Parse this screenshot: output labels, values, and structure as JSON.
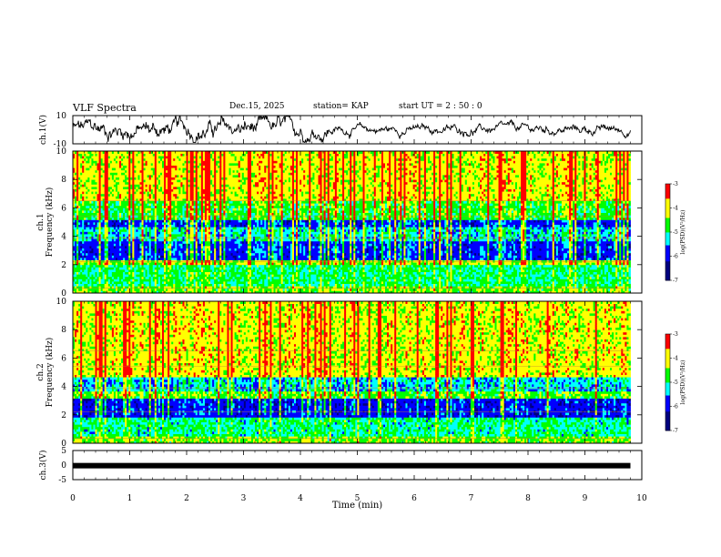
{
  "header": {
    "title": "VLF Spectra",
    "date": "Dec.15, 2025",
    "station": "station= KAP",
    "start_ut": "start  UT  =   2  : 50 : 0"
  },
  "chart_data": [
    {
      "type": "line",
      "panel": "ch.1 waveform",
      "ylabel": "ch.1(V)",
      "ylim": [
        -10,
        10
      ],
      "yticks": [
        "10",
        "-10"
      ],
      "x_range_min": [
        0,
        9.8
      ],
      "description_values": "noisy amplitude trace, mostly between -6 and +8 V"
    },
    {
      "type": "heatmap",
      "panel": "ch.1 spectrogram",
      "ylabel_top": "ch.1",
      "ylabel": "Frequency (kHz)",
      "ylim": [
        0,
        10
      ],
      "yticks": [
        "0",
        "2",
        "4",
        "6",
        "8",
        "10"
      ],
      "x_range_min": [
        0,
        9.8
      ],
      "bands_kHz": [
        {
          "from": 0.0,
          "to": 0.5,
          "level": -4.6
        },
        {
          "from": 0.5,
          "to": 2.0,
          "level": -5.0
        },
        {
          "from": 2.0,
          "to": 2.4,
          "level": -4.5
        },
        {
          "from": 2.4,
          "to": 3.6,
          "level": -5.9
        },
        {
          "from": 3.6,
          "to": 4.6,
          "level": -5.3
        },
        {
          "from": 4.6,
          "to": 5.2,
          "level": -5.9
        },
        {
          "from": 5.2,
          "to": 6.5,
          "level": -4.8
        },
        {
          "from": 6.5,
          "to": 10.0,
          "level": -4.2
        }
      ],
      "colorbar": {
        "label": "log(PSD)(V²/Hz)",
        "range": [
          -7,
          -3
        ],
        "ticks": [
          "-3",
          "-4",
          "-5",
          "-6",
          "-7"
        ]
      }
    },
    {
      "type": "heatmap",
      "panel": "ch.2 spectrogram",
      "ylabel_top": "ch.2",
      "ylabel": "Frequency (kHz)",
      "ylim": [
        0,
        10
      ],
      "yticks": [
        "0",
        "2",
        "4",
        "6",
        "8",
        "10"
      ],
      "x_range_min": [
        0,
        9.8
      ],
      "bands_kHz": [
        {
          "from": 0.0,
          "to": 0.5,
          "level": -4.6
        },
        {
          "from": 0.5,
          "to": 1.9,
          "level": -5.1
        },
        {
          "from": 1.9,
          "to": 3.1,
          "level": -6.0
        },
        {
          "from": 3.1,
          "to": 3.6,
          "level": -4.7
        },
        {
          "from": 3.6,
          "to": 4.6,
          "level": -5.4
        },
        {
          "from": 4.6,
          "to": 10.0,
          "level": -4.2
        }
      ],
      "colorbar": {
        "label": "log(PSD)(V²/Hz)",
        "range": [
          -7,
          -3
        ],
        "ticks": [
          "-3",
          "-4",
          "-5",
          "-6",
          "-7"
        ]
      }
    },
    {
      "type": "line",
      "panel": "ch.3 signal",
      "ylabel": "ch.3(V)",
      "ylim": [
        -5,
        5
      ],
      "yticks": [
        "5",
        "0",
        "-5"
      ],
      "x_range_min": [
        0,
        9.8
      ],
      "level_V": -0.2
    }
  ],
  "x_axis": {
    "label": "Time (min)",
    "xlim": [
      0,
      10
    ],
    "ticks": [
      "0",
      "1",
      "2",
      "3",
      "4",
      "5",
      "6",
      "7",
      "8",
      "9",
      "10"
    ]
  },
  "colors": {
    "low": "#00007f",
    "blue": "#0000ff",
    "cyan": "#00ffff",
    "green": "#00ff00",
    "yellow": "#ffff00",
    "red": "#ff0000"
  }
}
